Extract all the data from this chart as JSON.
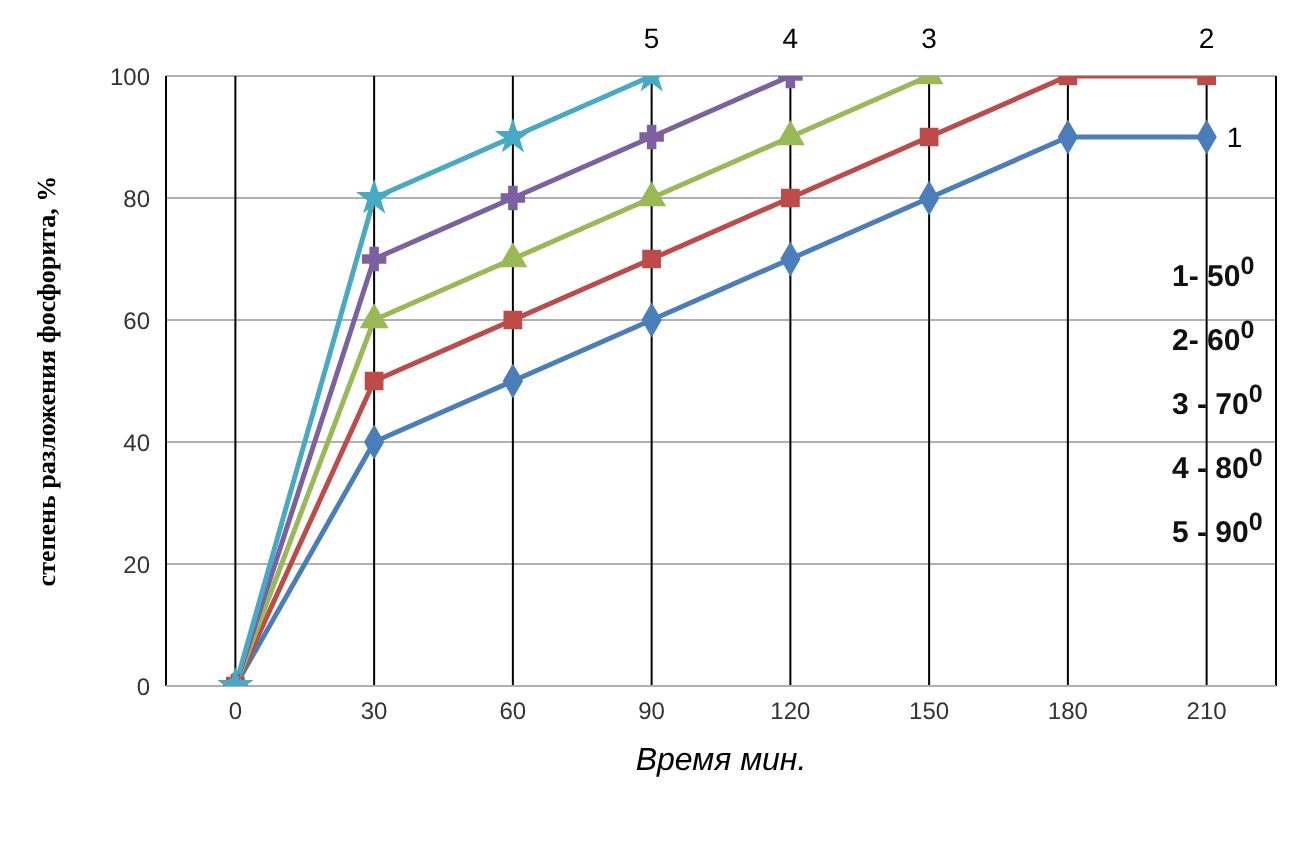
{
  "chart_data": {
    "type": "line",
    "xlabel": "Время мин.",
    "ylabel": "степень разложения фосфорита, %",
    "xlim": [
      -15,
      225
    ],
    "xticks": [
      0,
      30,
      60,
      90,
      120,
      150,
      180,
      210
    ],
    "ylim": [
      0,
      100
    ],
    "yticks": [
      0,
      20,
      40,
      60,
      80,
      100
    ],
    "grid": true,
    "series": [
      {
        "name": "1",
        "color": "#4a7ebb",
        "marker": "diamond",
        "x": [
          0,
          30,
          60,
          90,
          120,
          150,
          180,
          210
        ],
        "values": [
          0,
          40,
          50,
          60,
          70,
          80,
          90,
          90
        ]
      },
      {
        "name": "2",
        "color": "#be4b48",
        "marker": "square",
        "x": [
          0,
          30,
          60,
          90,
          120,
          150,
          180,
          210
        ],
        "values": [
          0,
          50,
          60,
          70,
          80,
          90,
          100,
          100
        ]
      },
      {
        "name": "3",
        "color": "#98b954",
        "marker": "triangle",
        "x": [
          0,
          30,
          60,
          90,
          120,
          150
        ],
        "values": [
          0,
          60,
          70,
          80,
          90,
          100
        ]
      },
      {
        "name": "4",
        "color": "#7d60a0",
        "marker": "cross",
        "x": [
          0,
          30,
          60,
          90,
          120
        ],
        "values": [
          0,
          70,
          80,
          90,
          100
        ]
      },
      {
        "name": "5",
        "color": "#46aac5",
        "marker": "star",
        "x": [
          0,
          30,
          60,
          90
        ],
        "values": [
          0,
          80,
          90,
          100
        ]
      }
    ],
    "annotations": [
      "1- 50$^{0}$",
      "2-  60$^{0}$",
      "3 - 70$^{0}$",
      "4 - 80$^{0}$",
      "5 - 90$^{0}$"
    ]
  }
}
